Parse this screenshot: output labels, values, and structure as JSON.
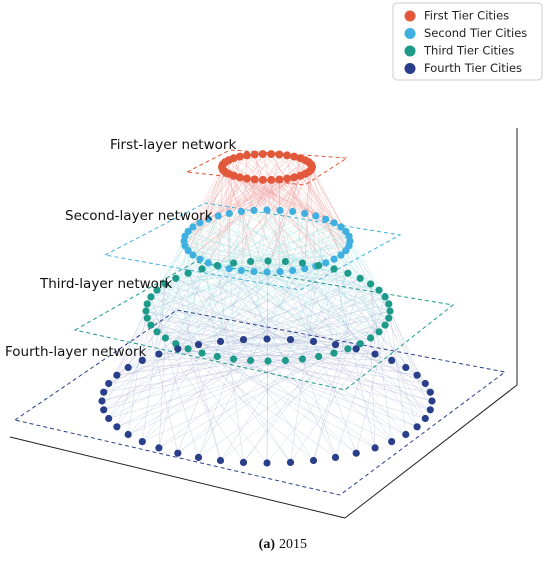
{
  "legend": {
    "items": [
      {
        "label": "First Tier Cities",
        "color": "#e2583a"
      },
      {
        "label": "Second Tier Cities",
        "color": "#3fb0e0"
      },
      {
        "label": "Third Tier Cities",
        "color": "#1e9a8a"
      },
      {
        "label": "Fourth Tier Cities",
        "color": "#2a3f8a"
      }
    ]
  },
  "layers": [
    {
      "label": "First-layer network"
    },
    {
      "label": "Second-layer network"
    },
    {
      "label": "Third-layer network"
    },
    {
      "label": "Fourth-layer network"
    }
  ],
  "caption": {
    "label": "(a)",
    "year": "2015"
  }
}
